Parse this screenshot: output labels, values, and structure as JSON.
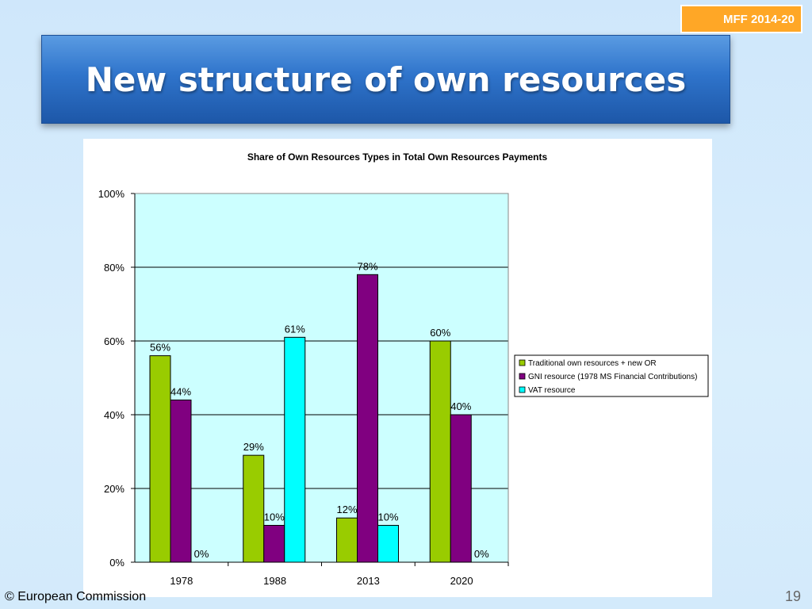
{
  "badge": "MFF 2014-20",
  "slide_title": "New structure of own resources",
  "footer": "© European Commission",
  "page_number": "19",
  "colors": {
    "traditional": "#99cc00",
    "gni": "#800080",
    "vat": "#00ffff",
    "plot_bg": "#ccffff"
  },
  "chart_data": {
    "type": "bar",
    "title": "Share of Own Resources Types in Total Own Resources Payments",
    "categories": [
      "1978",
      "1988",
      "2013",
      "2020"
    ],
    "series": [
      {
        "name": "Traditional own resources + new OR",
        "values": [
          56,
          29,
          12,
          60
        ],
        "labels": [
          "56%",
          "29%",
          "12%",
          "60%"
        ]
      },
      {
        "name": "GNI resource (1978 MS Financial Contributions)",
        "values": [
          44,
          10,
          78,
          40
        ],
        "labels": [
          "44%",
          "10%",
          "78%",
          "40%"
        ]
      },
      {
        "name": "VAT resource",
        "values": [
          0,
          61,
          10,
          0
        ],
        "labels": [
          "0%",
          "61%",
          "10%",
          "0%"
        ]
      }
    ],
    "ylim": [
      0,
      100
    ],
    "yticks": [
      "0%",
      "20%",
      "40%",
      "60%",
      "80%",
      "100%"
    ],
    "grid": true,
    "legend": "right"
  }
}
